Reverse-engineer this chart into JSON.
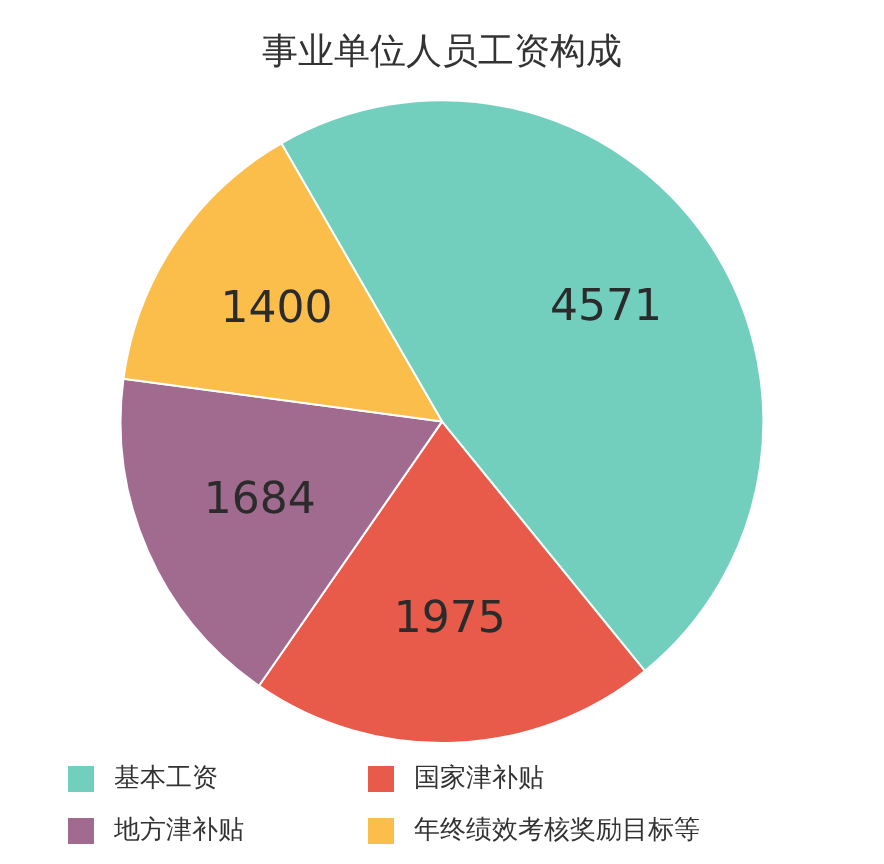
{
  "chart_data": {
    "type": "pie",
    "title": "事业单位人员工资构成",
    "categories": [
      "基本工资",
      "国家津补贴",
      "地方津补贴",
      "年终绩效考核奖励目标等"
    ],
    "values": [
      4571,
      1975,
      1684,
      1400
    ],
    "colors": [
      "#72cfbd",
      "#e85a4a",
      "#a06b8f",
      "#fbbe4b"
    ],
    "data_labels": true,
    "legend": "bottom"
  }
}
